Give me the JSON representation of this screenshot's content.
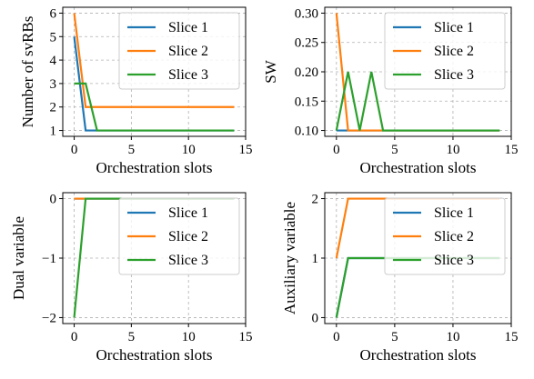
{
  "figure_title": "",
  "colors": {
    "slice1": "#1f77b4",
    "slice2": "#ff7f0e",
    "slice3": "#2ca02c"
  },
  "chart_data": [
    {
      "type": "line",
      "xlabel": "Orchestration slots",
      "ylabel": "Number of svRBs",
      "xlim": [
        -1,
        15
      ],
      "ylim": [
        0.75,
        6.25
      ],
      "xticks": [
        0,
        5,
        10,
        15
      ],
      "yticks": [
        1,
        2,
        3,
        4,
        5,
        6
      ],
      "ytick_labels": [
        "1",
        "2",
        "3",
        "4",
        "5",
        "6"
      ],
      "grid": true,
      "legend_position": "top-right",
      "series": [
        {
          "name": "Slice 1",
          "color": "#1f77b4",
          "x": [
            0,
            1,
            14
          ],
          "y": [
            5,
            1,
            1
          ]
        },
        {
          "name": "Slice 2",
          "color": "#ff7f0e",
          "x": [
            0,
            1,
            14
          ],
          "y": [
            6,
            2,
            2
          ]
        },
        {
          "name": "Slice 3",
          "color": "#2ca02c",
          "x": [
            0,
            1,
            2,
            14
          ],
          "y": [
            3,
            3,
            1,
            1
          ]
        }
      ]
    },
    {
      "type": "line",
      "xlabel": "Orchestration slots",
      "ylabel": "SW",
      "xlim": [
        -1,
        15
      ],
      "ylim": [
        0.09,
        0.31
      ],
      "xticks": [
        0,
        5,
        10,
        15
      ],
      "yticks": [
        0.1,
        0.15,
        0.2,
        0.25,
        0.3
      ],
      "ytick_labels": [
        "0.10",
        "0.15",
        "0.20",
        "0.25",
        "0.30"
      ],
      "grid": true,
      "legend_position": "top-right",
      "series": [
        {
          "name": "Slice 1",
          "color": "#1f77b4",
          "x": [
            0,
            14
          ],
          "y": [
            0.1,
            0.1
          ]
        },
        {
          "name": "Slice 2",
          "color": "#ff7f0e",
          "x": [
            0,
            1,
            14
          ],
          "y": [
            0.3,
            0.1,
            0.1
          ]
        },
        {
          "name": "Slice 3",
          "color": "#2ca02c",
          "x": [
            0,
            1,
            2,
            3,
            4,
            14
          ],
          "y": [
            0.1,
            0.2,
            0.1,
            0.2,
            0.1,
            0.1
          ]
        }
      ]
    },
    {
      "type": "line",
      "xlabel": "Orchestration slots",
      "ylabel": "Dual variable",
      "xlim": [
        -1,
        15
      ],
      "ylim": [
        -2.1,
        0.1
      ],
      "xticks": [
        0,
        5,
        10,
        15
      ],
      "yticks": [
        -2,
        -1,
        0
      ],
      "ytick_labels": [
        "−2",
        "−1",
        "0"
      ],
      "grid": true,
      "legend_position": "top-right",
      "series": [
        {
          "name": "Slice 1",
          "color": "#1f77b4",
          "x": [
            0,
            14
          ],
          "y": [
            0,
            0
          ]
        },
        {
          "name": "Slice 2",
          "color": "#ff7f0e",
          "x": [
            0,
            14
          ],
          "y": [
            0,
            0
          ]
        },
        {
          "name": "Slice 3",
          "color": "#2ca02c",
          "x": [
            0,
            1,
            14
          ],
          "y": [
            -2,
            0,
            0
          ]
        }
      ]
    },
    {
      "type": "line",
      "xlabel": "Orchestration slots",
      "ylabel": "Auxiliary variable",
      "xlim": [
        -1,
        15
      ],
      "ylim": [
        -0.1,
        2.1
      ],
      "xticks": [
        0,
        5,
        10,
        15
      ],
      "yticks": [
        0,
        1,
        2
      ],
      "ytick_labels": [
        "0",
        "1",
        "2"
      ],
      "grid": true,
      "legend_position": "top-right",
      "series": [
        {
          "name": "Slice 1",
          "color": "#1f77b4",
          "x": [
            0,
            1,
            14
          ],
          "y": [
            0,
            1,
            1
          ]
        },
        {
          "name": "Slice 2",
          "color": "#ff7f0e",
          "x": [
            0,
            1,
            14
          ],
          "y": [
            1,
            2,
            2
          ]
        },
        {
          "name": "Slice 3",
          "color": "#2ca02c",
          "x": [
            0,
            1,
            14
          ],
          "y": [
            0,
            1,
            1
          ]
        }
      ]
    }
  ]
}
